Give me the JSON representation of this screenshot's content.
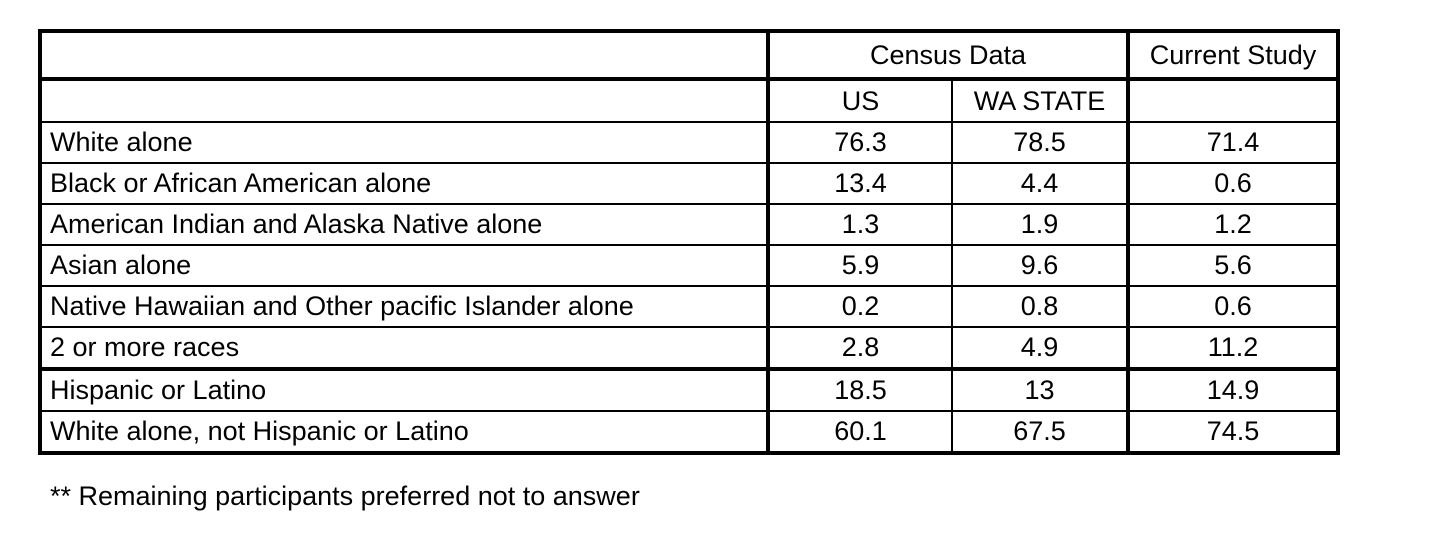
{
  "table": {
    "group_headers": {
      "census": "Census Data",
      "current_study": "Current Study"
    },
    "sub_headers": {
      "us": "US",
      "wa_state": "WA STATE"
    },
    "rows": [
      {
        "label": "White alone",
        "us": "76.3",
        "wa": "78.5",
        "current": "71.4"
      },
      {
        "label": "Black or African American alone",
        "us": "13.4",
        "wa": "4.4",
        "current": "0.6"
      },
      {
        "label": "American Indian and Alaska Native alone",
        "us": "1.3",
        "wa": "1.9",
        "current": "1.2"
      },
      {
        "label": "Asian alone",
        "us": "5.9",
        "wa": "9.6",
        "current": "5.6"
      },
      {
        "label": "Native Hawaiian and Other pacific Islander alone",
        "us": "0.2",
        "wa": "0.8",
        "current": "0.6"
      },
      {
        "label": "2 or more races",
        "us": "2.8",
        "wa": "4.9",
        "current": "11.2"
      },
      {
        "label": "Hispanic or Latino",
        "us": "18.5",
        "wa": "13",
        "current": "14.9"
      },
      {
        "label": "White alone, not Hispanic or Latino",
        "us": "60.1",
        "wa": "67.5",
        "current": "74.5"
      }
    ]
  },
  "footnote": "** Remaining participants preferred not to answer"
}
